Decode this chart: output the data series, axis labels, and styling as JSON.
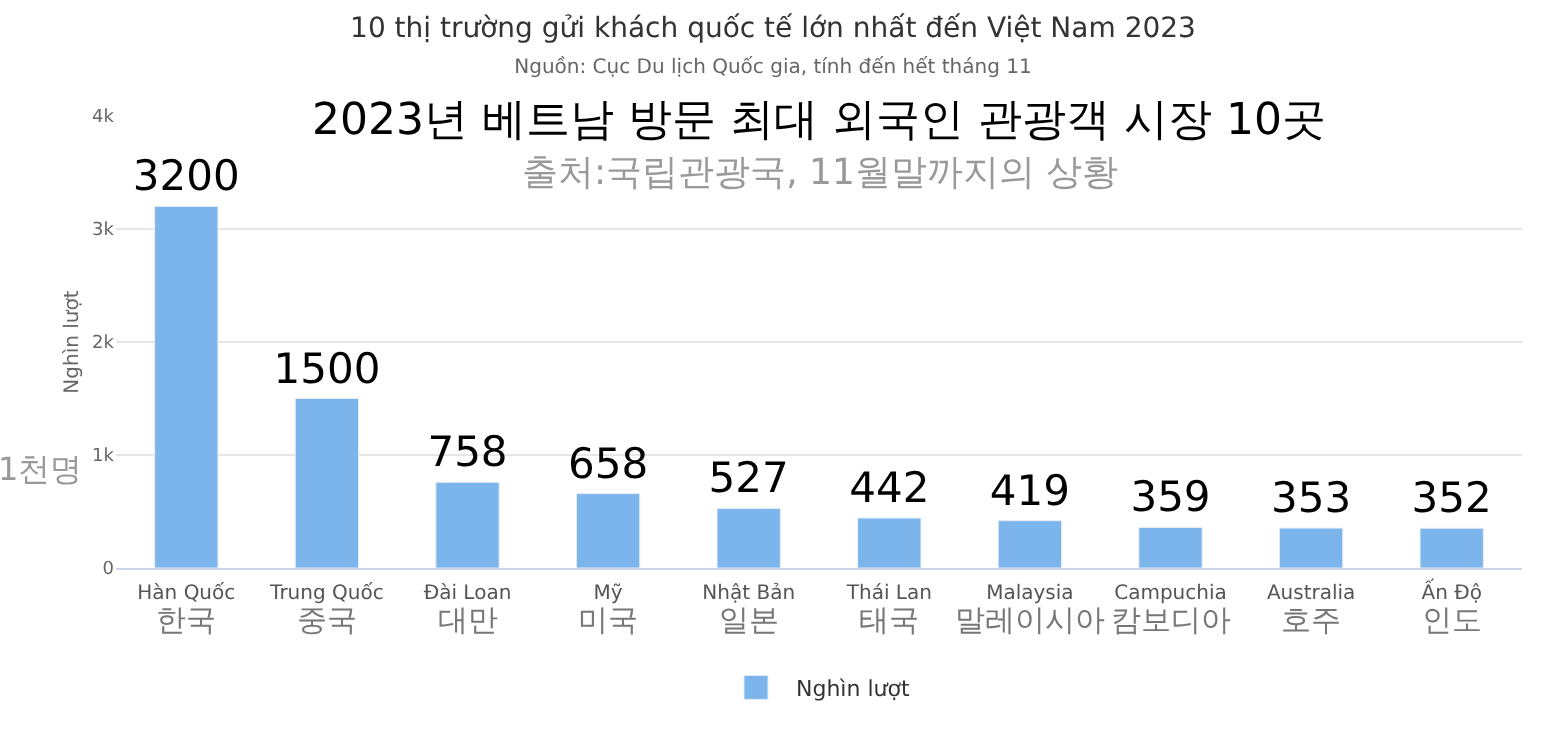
{
  "chart_data": {
    "type": "bar",
    "title": "10 thị trường gửi khách quốc tế lớn nhất đến Việt Nam 2023",
    "subtitle": "Nguồn: Cục Du lịch Quốc gia, tính đến hết tháng 11",
    "ylabel": "Nghìn lượt",
    "categories": [
      "Hàn Quốc\n한국",
      "Trung Quốc\n중국",
      "Đài Loan\n대만",
      "Mỹ\n미국",
      "Nhật Bản\n일본",
      "Thái Lan\n태국",
      "Malaysia\n말레이시아",
      "Campuchia\n캄보디아",
      "Australia\n호주",
      "Ấn Độ\n인도"
    ],
    "series": [
      {
        "name": "Nghìn lượt",
        "color": "#7cb5ec",
        "values": [
          3200,
          1500,
          758,
          658,
          527,
          442,
          419,
          359,
          353,
          352
        ]
      }
    ],
    "data_labels": true,
    "ylim": [
      0,
      4000
    ],
    "yticks": [
      {
        "value": 0,
        "label": "0"
      },
      {
        "value": 1000,
        "label": "1k"
      },
      {
        "value": 2000,
        "label": "2k"
      },
      {
        "value": 3000,
        "label": "3k"
      },
      {
        "value": 4000,
        "label": "4k"
      }
    ],
    "grid": "y",
    "legend": "bottom",
    "annotations": [
      "2023년 베트남 방문 최대 외국인 관광객 시장 10곳",
      "출처:국립관광국, 11월말까지의 상황",
      "1천명"
    ]
  }
}
